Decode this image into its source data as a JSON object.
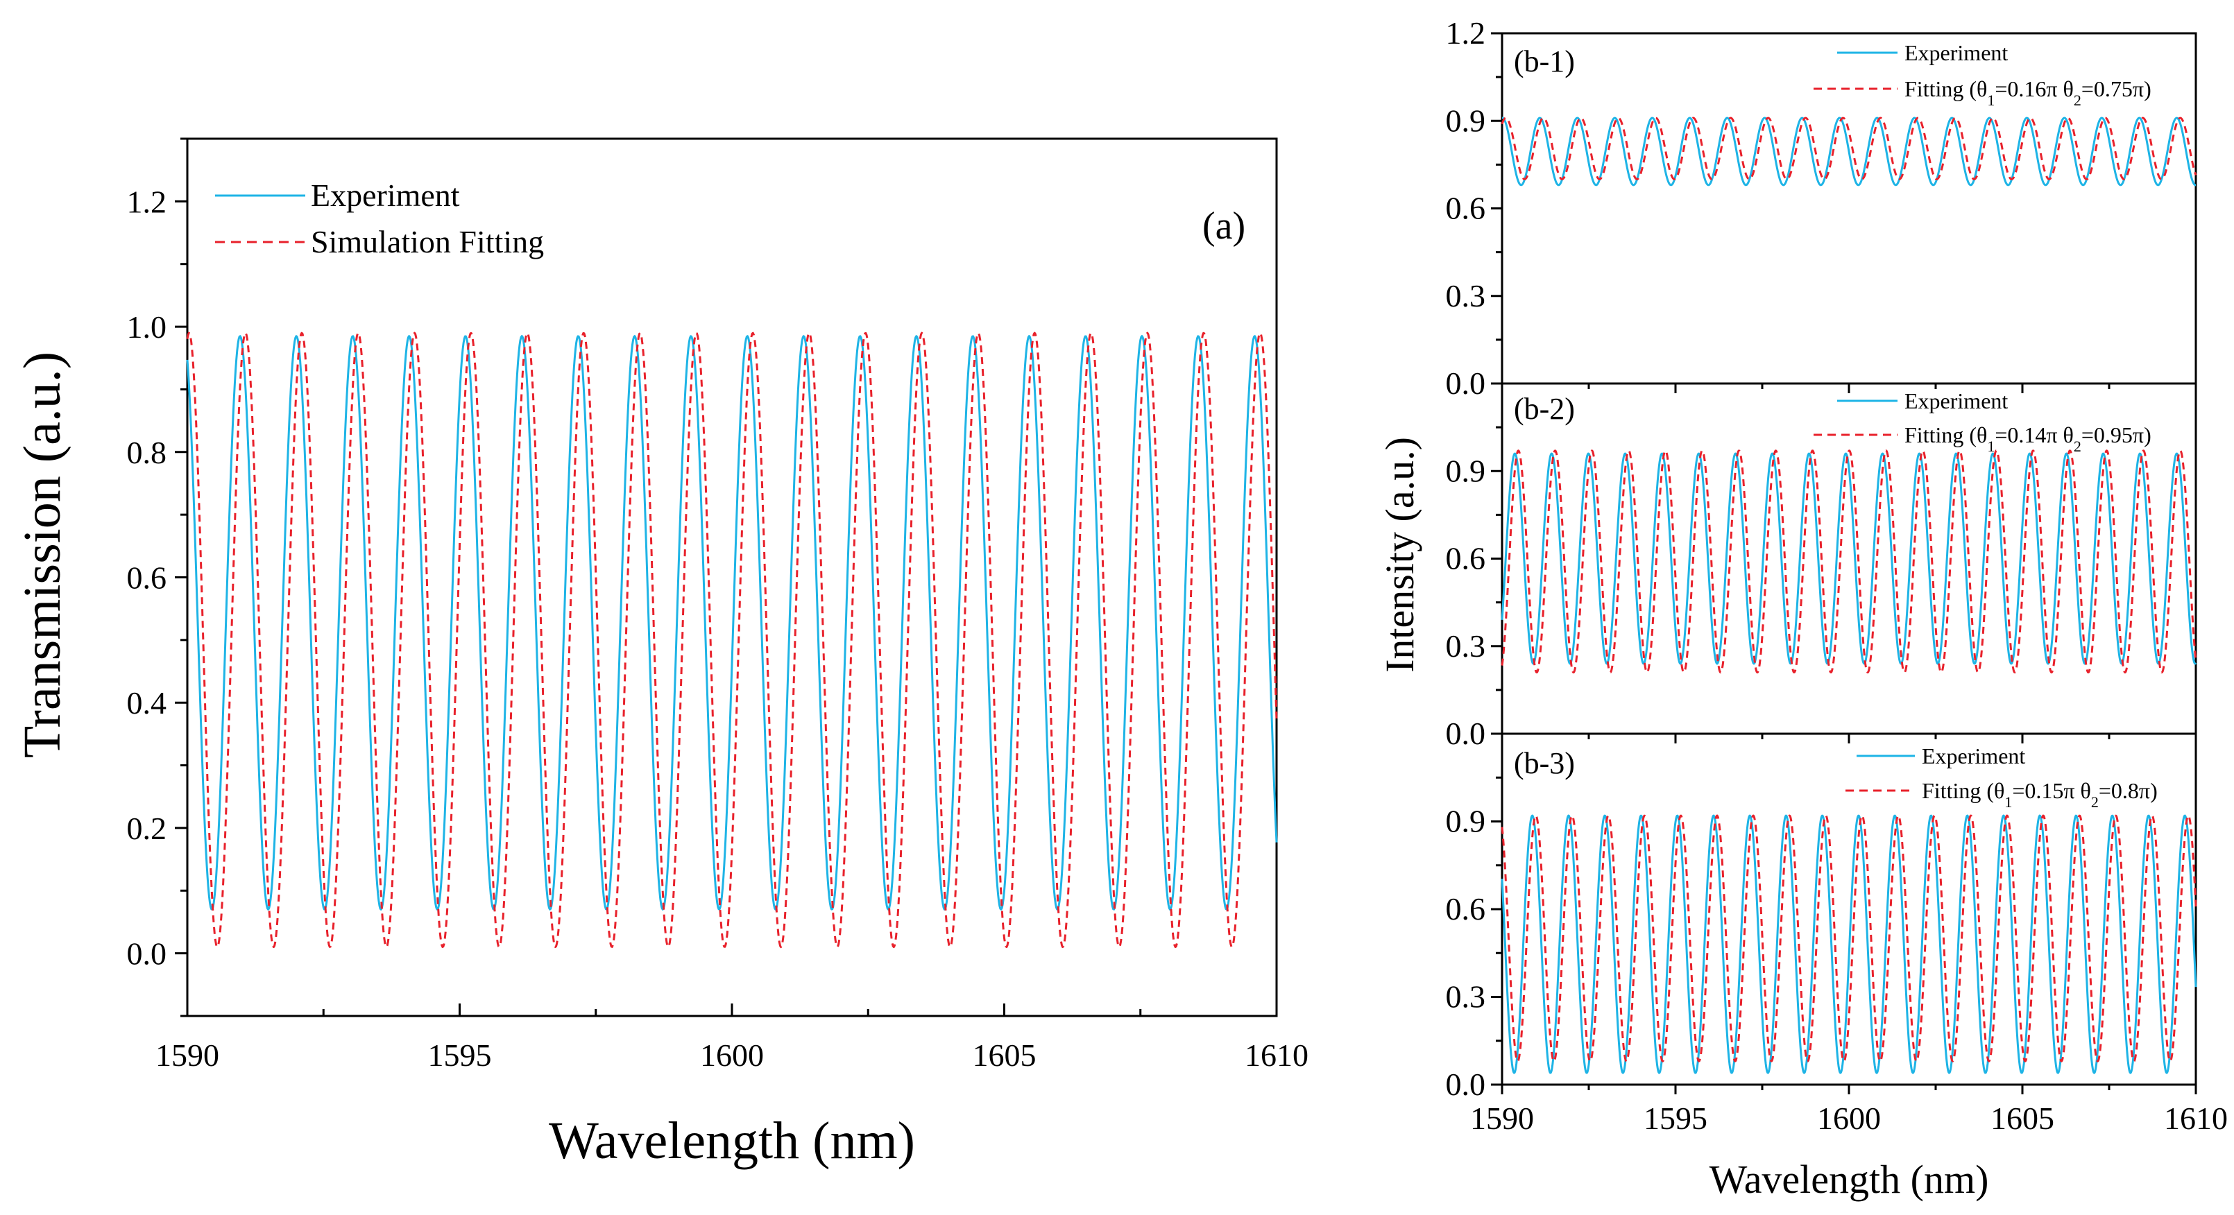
{
  "chart_data": [
    {
      "id": "a",
      "type": "line",
      "panel_label": "(a)",
      "xlabel": "Wavelength (nm)",
      "ylabel": "Transmission (a.u.)",
      "xlim": [
        1590,
        1610
      ],
      "ylim": [
        -0.1,
        1.3
      ],
      "xticks": [
        1590,
        1595,
        1600,
        1605,
        1610
      ],
      "yticks": [
        0.0,
        0.2,
        0.4,
        0.6,
        0.8,
        1.0,
        1.2
      ],
      "ytick_labels": [
        "0.0",
        "0.2",
        "0.4",
        "0.6",
        "0.8",
        "1.0",
        "1.2"
      ],
      "legend_position": "top-left",
      "series": [
        {
          "name": "Experiment",
          "style": "solid",
          "color": "#1eb4e6",
          "max": 0.985,
          "min": 0.07,
          "period_nm": 1.035,
          "first_min_nm": 1590.45
        },
        {
          "name": "Simulation Fitting",
          "style": "dashed",
          "color": "#e8212b",
          "max": 0.99,
          "min": 0.01,
          "period_nm": 1.035,
          "first_min_nm": 1590.55
        }
      ]
    },
    {
      "id": "b1",
      "type": "line",
      "panel_label": "(b-1)",
      "xlabel": "",
      "ylabel": "",
      "xlim": [
        1590,
        1610
      ],
      "ylim": [
        0.0,
        1.2
      ],
      "xticks": [
        1590,
        1595,
        1600,
        1605,
        1610
      ],
      "yticks": [
        0.0,
        0.3,
        0.6,
        0.9,
        1.2
      ],
      "ytick_labels": [
        "0.0",
        "0.3",
        "0.6",
        "0.9",
        "1.2"
      ],
      "legend_position": "top-right",
      "series": [
        {
          "name": "Experiment",
          "style": "solid",
          "color": "#1eb4e6",
          "max": 0.91,
          "min": 0.68,
          "period_nm": 1.08,
          "first_min_nm": 1590.55
        },
        {
          "name": "Fitting (θ1=0.16π θ2=0.75π)",
          "style": "dashed",
          "color": "#e8212b",
          "max": 0.91,
          "min": 0.7,
          "period_nm": 1.08,
          "first_min_nm": 1590.65
        }
      ]
    },
    {
      "id": "b2",
      "type": "line",
      "panel_label": "(b-2)",
      "xlabel": "",
      "ylabel": "Intensity (a.u.)",
      "xlim": [
        1590,
        1610
      ],
      "ylim": [
        0.0,
        1.2
      ],
      "xticks": [
        1590,
        1595,
        1600,
        1605,
        1610
      ],
      "yticks": [
        0.0,
        0.3,
        0.6,
        0.9
      ],
      "ytick_labels": [
        "0.0",
        "0.3",
        "0.6",
        "0.9"
      ],
      "legend_position": "top-right",
      "series": [
        {
          "name": "Experiment",
          "style": "solid",
          "color": "#1eb4e6",
          "max": 0.96,
          "min": 0.24,
          "period_nm": 1.06,
          "first_min_nm": 1590.9
        },
        {
          "name": "Fitting (θ1=0.14π θ2=0.95π)",
          "style": "dashed",
          "color": "#e8212b",
          "max": 0.97,
          "min": 0.21,
          "period_nm": 1.06,
          "first_min_nm": 1591.0
        }
      ]
    },
    {
      "id": "b3",
      "type": "line",
      "panel_label": "(b-3)",
      "xlabel": "Wavelength (nm)",
      "ylabel": "",
      "xlim": [
        1590,
        1610
      ],
      "ylim": [
        0.0,
        1.2
      ],
      "xticks": [
        1590,
        1595,
        1600,
        1605,
        1610
      ],
      "xtick_labels": [
        "1590",
        "1595",
        "1600",
        "1605",
        "1610"
      ],
      "yticks": [
        0.0,
        0.3,
        0.6,
        0.9
      ],
      "ytick_labels": [
        "0.0",
        "0.3",
        "0.6",
        "0.9"
      ],
      "legend_position": "top-right",
      "series": [
        {
          "name": "Experiment",
          "style": "solid",
          "color": "#1eb4e6",
          "max": 0.92,
          "min": 0.04,
          "period_nm": 1.045,
          "first_min_nm": 1590.35
        },
        {
          "name": "Fitting (θ1=0.15π θ2=0.8π)",
          "style": "dashed",
          "color": "#e8212b",
          "max": 0.92,
          "min": 0.08,
          "period_nm": 1.045,
          "first_min_nm": 1590.45
        }
      ]
    }
  ],
  "legend_a": {
    "experiment": "Experiment",
    "fitting": "Simulation Fitting"
  },
  "legend_b1": {
    "experiment": "Experiment",
    "fitting_prefix": "Fitting (θ",
    "s1": "1",
    "mid1": "=0.16π θ",
    "s2": "2",
    "mid2": "=0.75π)"
  },
  "legend_b2": {
    "experiment": "Experiment",
    "fitting_prefix": "Fitting (θ",
    "s1": "1",
    "mid1": "=0.14π θ",
    "s2": "2",
    "mid2": "=0.95π)"
  },
  "legend_b3": {
    "experiment": "Experiment",
    "fitting_prefix": "Fitting (θ",
    "s1": "1",
    "mid1": "=0.15π θ",
    "s2": "2",
    "mid2": "=0.8π)"
  }
}
